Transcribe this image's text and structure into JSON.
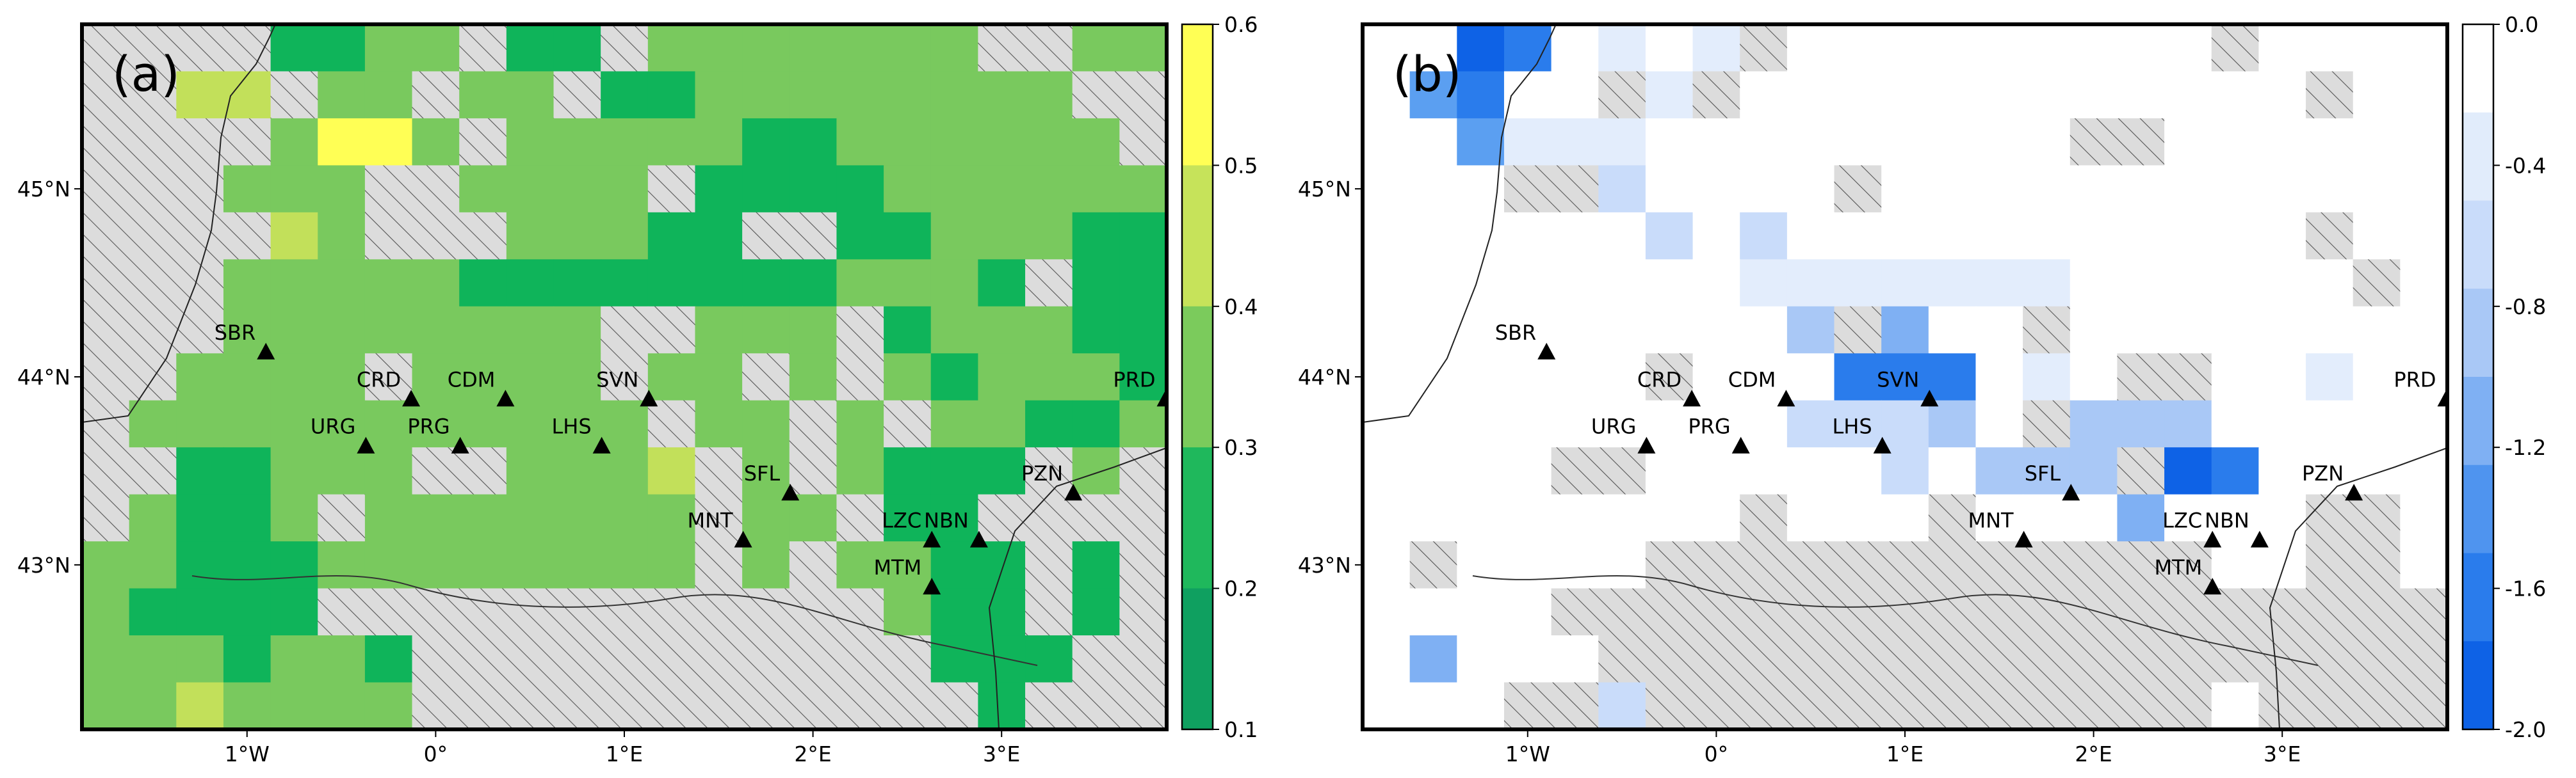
{
  "figure": {
    "panels": [
      {
        "id": "a",
        "tag": "(a)",
        "colorbar": {
          "ticks": [
            "0.6",
            "0.5",
            "0.4",
            "0.3",
            "0.2",
            "0.1"
          ],
          "colors": [
            "#ffff55",
            "#c6e35a",
            "#7bcb5c",
            "#1fb85c",
            "#0fa060"
          ]
        }
      },
      {
        "id": "b",
        "tag": "(b)",
        "colorbar": {
          "ticks": [
            "0.0",
            "-0.4",
            "-0.8",
            "-1.2",
            "-1.6",
            "-2.0"
          ],
          "colors": [
            "#ffffff",
            "#e1ecfb",
            "#c9dcfa",
            "#a9c8f6",
            "#7fb0f3",
            "#4f94ef",
            "#2a7cec",
            "#0e62e6"
          ]
        }
      }
    ],
    "x_tick_labels": [
      "1°W",
      "0°",
      "1°E",
      "2°E",
      "3°E"
    ],
    "y_tick_labels": [
      "45°N",
      "44°N",
      "43°N"
    ],
    "stations": [
      {
        "code": "SBR",
        "lon": -0.9,
        "lat": 44.13
      },
      {
        "code": "CRD",
        "lon": -0.13,
        "lat": 43.88
      },
      {
        "code": "CDM",
        "lon": 0.37,
        "lat": 43.88
      },
      {
        "code": "SVN",
        "lon": 1.13,
        "lat": 43.88
      },
      {
        "code": "PRD",
        "lon": 3.87,
        "lat": 43.88
      },
      {
        "code": "URG",
        "lon": -0.37,
        "lat": 43.63
      },
      {
        "code": "PRG",
        "lon": 0.13,
        "lat": 43.63
      },
      {
        "code": "LHS",
        "lon": 0.88,
        "lat": 43.63
      },
      {
        "code": "SFL",
        "lon": 1.88,
        "lat": 43.38
      },
      {
        "code": "PZN",
        "lon": 3.38,
        "lat": 43.38
      },
      {
        "code": "MNT",
        "lon": 1.63,
        "lat": 43.13
      },
      {
        "code": "LZC",
        "lon": 2.63,
        "lat": 43.13
      },
      {
        "code": "NBN",
        "lon": 2.88,
        "lat": 43.13
      },
      {
        "code": "MTM",
        "lon": 2.63,
        "lat": 42.88
      }
    ]
  }
}
